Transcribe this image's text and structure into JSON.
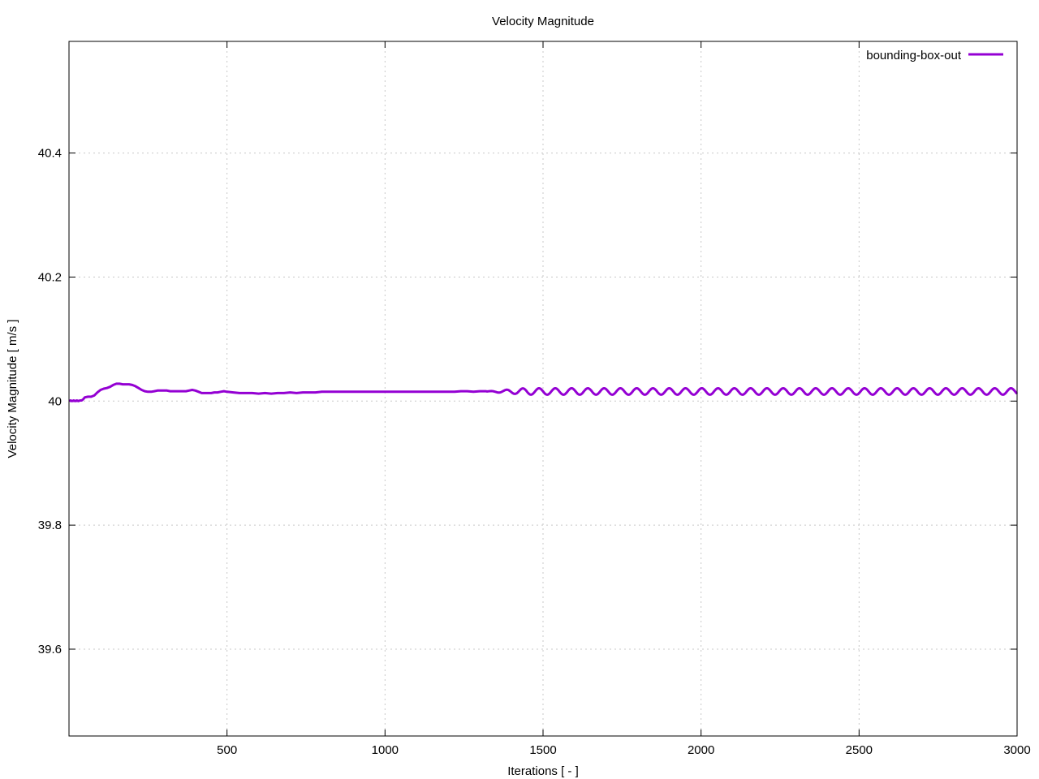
{
  "chart_data": {
    "type": "line",
    "title": "Velocity Magnitude",
    "xlabel": "Iterations [ - ]",
    "ylabel": "Velocity Magnitude [ m/s ]",
    "xlim": [
      0,
      3000
    ],
    "ylim": [
      39.46,
      40.58
    ],
    "xticks": [
      500,
      1000,
      1500,
      2000,
      2500,
      3000
    ],
    "xtick_labels": [
      "500",
      "1000",
      "1500",
      "2000",
      "2500",
      "3000"
    ],
    "yticks": [
      39.6,
      39.8,
      40,
      40.2,
      40.4
    ],
    "ytick_labels": [
      "39.6",
      "39.8",
      "40",
      "40.2",
      "40.4"
    ],
    "grid": true,
    "legend_position": "top-right",
    "series": [
      {
        "name": "bounding-box-out",
        "color": "#9400d3",
        "x": [
          1,
          5,
          10,
          15,
          20,
          25,
          30,
          35,
          40,
          45,
          50,
          60,
          70,
          80,
          90,
          100,
          110,
          120,
          130,
          140,
          150,
          160,
          170,
          180,
          190,
          200,
          210,
          220,
          230,
          240,
          250,
          260,
          270,
          280,
          290,
          300,
          310,
          320,
          330,
          340,
          350,
          360,
          370,
          380,
          390,
          400,
          410,
          420,
          430,
          440,
          450,
          460,
          470,
          480,
          490,
          500,
          520,
          540,
          560,
          580,
          600,
          620,
          640,
          660,
          680,
          700,
          720,
          740,
          760,
          780,
          800,
          820,
          840,
          860,
          880,
          900,
          920,
          940,
          960,
          980,
          1000,
          1020,
          1040,
          1060,
          1080,
          1100,
          1120,
          1140,
          1160,
          1180,
          1200,
          1220,
          1240,
          1260,
          1280,
          1300,
          1320
        ],
        "y": [
          40.0,
          40.001,
          40.0,
          40.001,
          40.0,
          40.001,
          40.0,
          40.001,
          40.001,
          40.003,
          40.006,
          40.007,
          40.007,
          40.009,
          40.014,
          40.018,
          40.02,
          40.021,
          40.023,
          40.026,
          40.028,
          40.028,
          40.027,
          40.027,
          40.027,
          40.026,
          40.024,
          40.021,
          40.018,
          40.016,
          40.015,
          40.015,
          40.016,
          40.017,
          40.017,
          40.017,
          40.017,
          40.016,
          40.016,
          40.016,
          40.016,
          40.016,
          40.016,
          40.017,
          40.018,
          40.017,
          40.015,
          40.013,
          40.013,
          40.013,
          40.013,
          40.014,
          40.014,
          40.015,
          40.016,
          40.015,
          40.014,
          40.013,
          40.013,
          40.013,
          40.012,
          40.013,
          40.012,
          40.013,
          40.013,
          40.014,
          40.013,
          40.014,
          40.014,
          40.014,
          40.015,
          40.015,
          40.015,
          40.015,
          40.015,
          40.015,
          40.015,
          40.015,
          40.015,
          40.015,
          40.015,
          40.015,
          40.015,
          40.015,
          40.015,
          40.015,
          40.015,
          40.015,
          40.015,
          40.015,
          40.015,
          40.015,
          40.016,
          40.016,
          40.015,
          40.016,
          40.016
        ],
        "oscillation": {
          "x_start": 1320,
          "x_end": 3000,
          "center": 40.0155,
          "amplitude": 0.0052,
          "period": 51.5
        }
      }
    ]
  }
}
